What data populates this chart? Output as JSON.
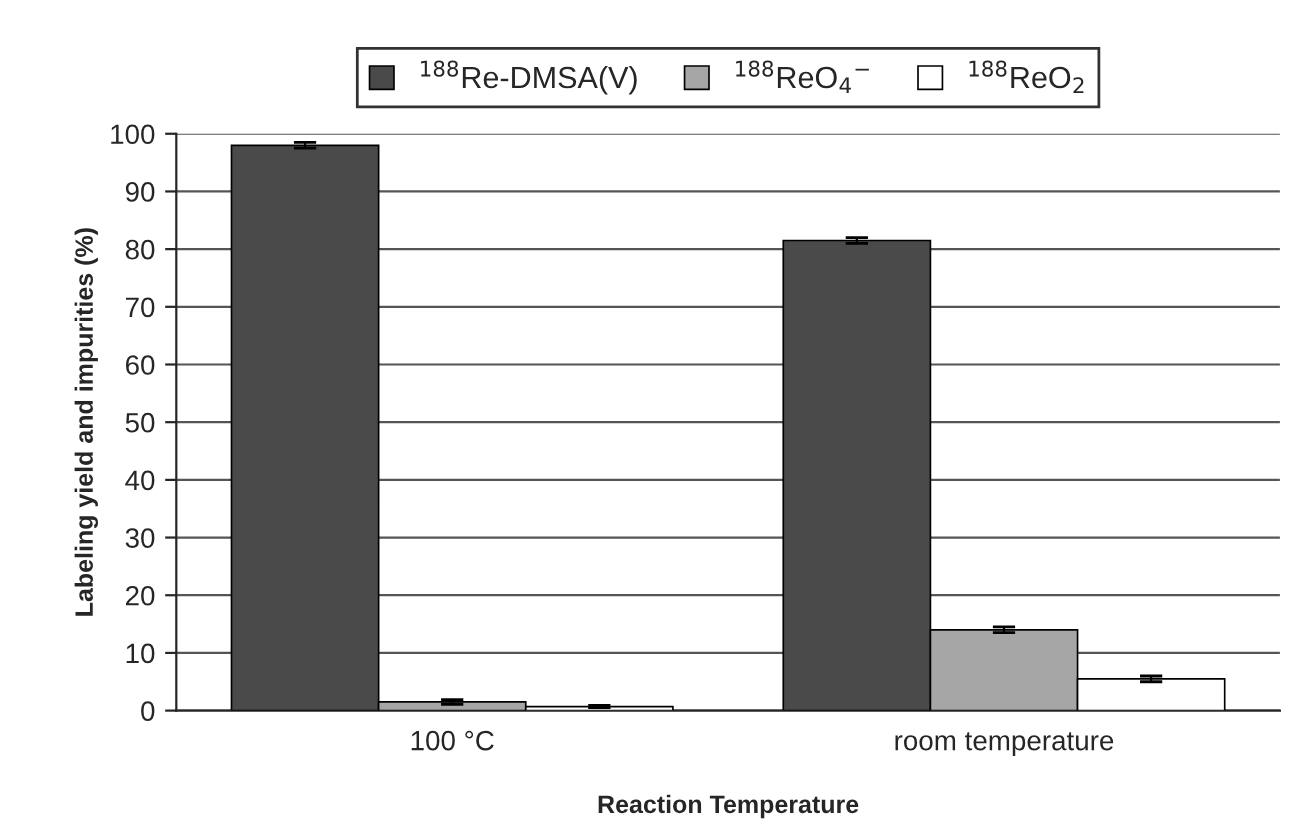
{
  "chart_data": {
    "type": "bar",
    "xlabel": "Reaction Temperature",
    "ylabel": "Labeling yield and impurities (%)",
    "categories": [
      "100 °C",
      "room temperature"
    ],
    "series": [
      {
        "name": "$^{188}$Re-DMSA(V)",
        "color": "#4a4a4a",
        "values": [
          98,
          81.5
        ],
        "errors": [
          0.5,
          0.5
        ]
      },
      {
        "name": "$^{188}$ReO$_{4}$$^{−}$",
        "color": "#a6a6a6",
        "values": [
          1.5,
          14
        ],
        "errors": [
          0.4,
          0.5
        ]
      },
      {
        "name": "$^{188}$ReO$_{2}$",
        "color": "#ffffff",
        "values": [
          0.7,
          5.5
        ],
        "errors": [
          0.2,
          0.5
        ]
      }
    ],
    "ylim": [
      0,
      100
    ],
    "yticks": [
      0,
      10,
      20,
      30,
      40,
      50,
      60,
      70,
      80,
      90,
      100
    ],
    "grid": "y",
    "legend": "top"
  }
}
